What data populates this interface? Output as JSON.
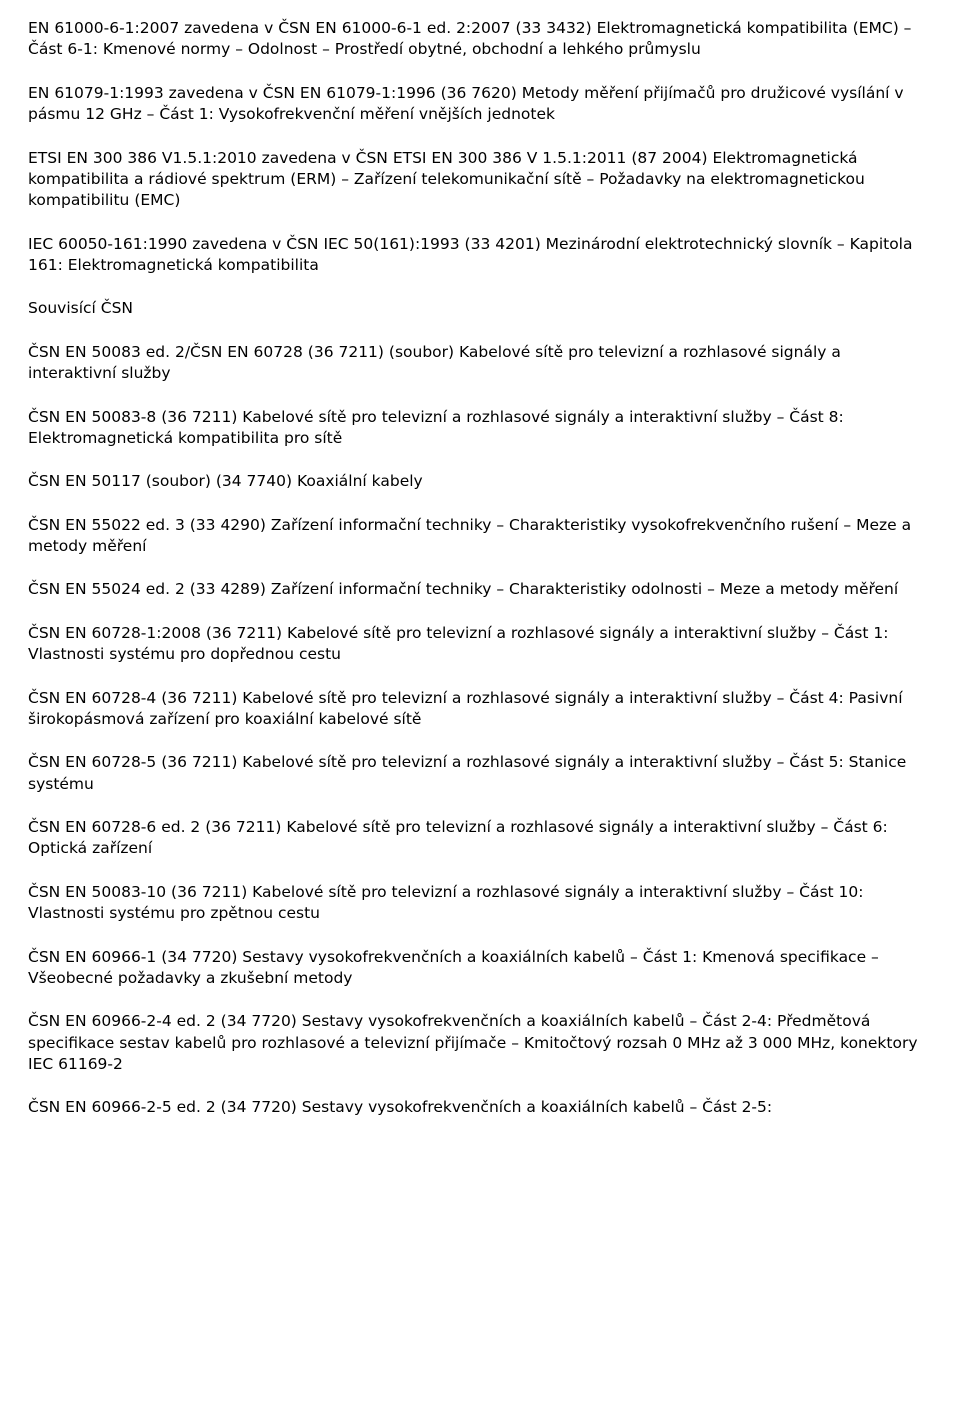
{
  "paragraphs": [
    "EN 61000-6-1:2007 zavedena v ČSN EN 61000-6-1 ed. 2:2007 (33 3432) Elektromagnetická kompatibilita (EMC) – Část 6-1: Kmenové normy – Odolnost – Prostředí obytné, obchodní a lehkého průmyslu",
    "EN 61079-1:1993 zavedena v ČSN EN 61079-1:1996 (36 7620) Metody měření přijímačů pro družicové vysílání v pásmu 12 GHz – Část 1: Vysokofrekvenční měření vnějších jednotek",
    "ETSI EN 300 386 V1.5.1:2010 zavedena v ČSN ETSI EN 300 386 V 1.5.1:2011 (87 2004) Elektromagnetická kompatibilita a rádiové spektrum (ERM) – Zařízení telekomunikační sítě – Požadavky na elektromagnetickou kompatibilitu (EMC)",
    "IEC 60050-161:1990 zavedena v ČSN IEC 50(161):1993 (33 4201) Mezinárodní elektrotechnický slovník – Kapitola 161: Elektromagnetická kompatibilita",
    "Souvisící ČSN",
    "ČSN EN 50083 ed. 2/ČSN EN 60728 (36 7211) (soubor) Kabelové sítě pro televizní a rozhlasové signály\na interaktivní služby",
    "ČSN EN 50083-8 (36 7211) Kabelové sítě pro televizní a rozhlasové signály a interaktivní služby – Část 8: Elektromagnetická kompatibilita pro sítě",
    "ČSN EN 50117 (soubor) (34 7740) Koaxiální kabely",
    "ČSN EN 55022 ed. 3 (33 4290) Zařízení informační techniky – Charakteristiky vysokofrekvenčního rušení – Meze a metody měření",
    "ČSN EN 55024 ed. 2 (33 4289) Zařízení informační techniky – Charakteristiky odolnosti – Meze a metody měření",
    "ČSN EN 60728-1:2008 (36 7211) Kabelové sítě pro televizní a rozhlasové signály a interaktivní služby – Část 1: Vlastnosti systému pro dopřednou cestu",
    "ČSN EN 60728-4 (36 7211) Kabelové sítě pro televizní a rozhlasové signály a interaktivní služby – Část 4: Pasivní širokopásmová zařízení pro koaxiální kabelové sítě",
    "ČSN EN 60728-5 (36 7211) Kabelové sítě pro televizní a rozhlasové signály a interaktivní služby – Část 5: Stanice systému",
    "ČSN EN 60728-6 ed. 2 (36 7211) Kabelové sítě pro televizní a rozhlasové signály a interaktivní služby – Část 6: Optická zařízení",
    "ČSN EN 50083-10 (36 7211) Kabelové sítě pro televizní a rozhlasové signály a interaktivní služby – Část 10: Vlastnosti systému pro zpětnou cestu",
    "ČSN EN 60966-1 (34 7720) Sestavy vysokofrekvenčních a koaxiálních kabelů – Část 1: Kmenová specifikace – Všeobecné požadavky a zkušební metody",
    "ČSN EN 60966-2-4 ed. 2 (34 7720) Sestavy vysokofrekvenčních a koaxiálních kabelů – Část 2-4: Předmětová specifikace sestav kabelů pro rozhlasové a televizní přijímače – Kmitočtový rozsah 0 MHz až 3 000 MHz, konektory IEC 61169-2",
    "ČSN EN 60966-2-5 ed. 2 (34 7720) Sestavy vysokofrekvenčních a koaxiálních kabelů – Část 2-5:"
  ]
}
